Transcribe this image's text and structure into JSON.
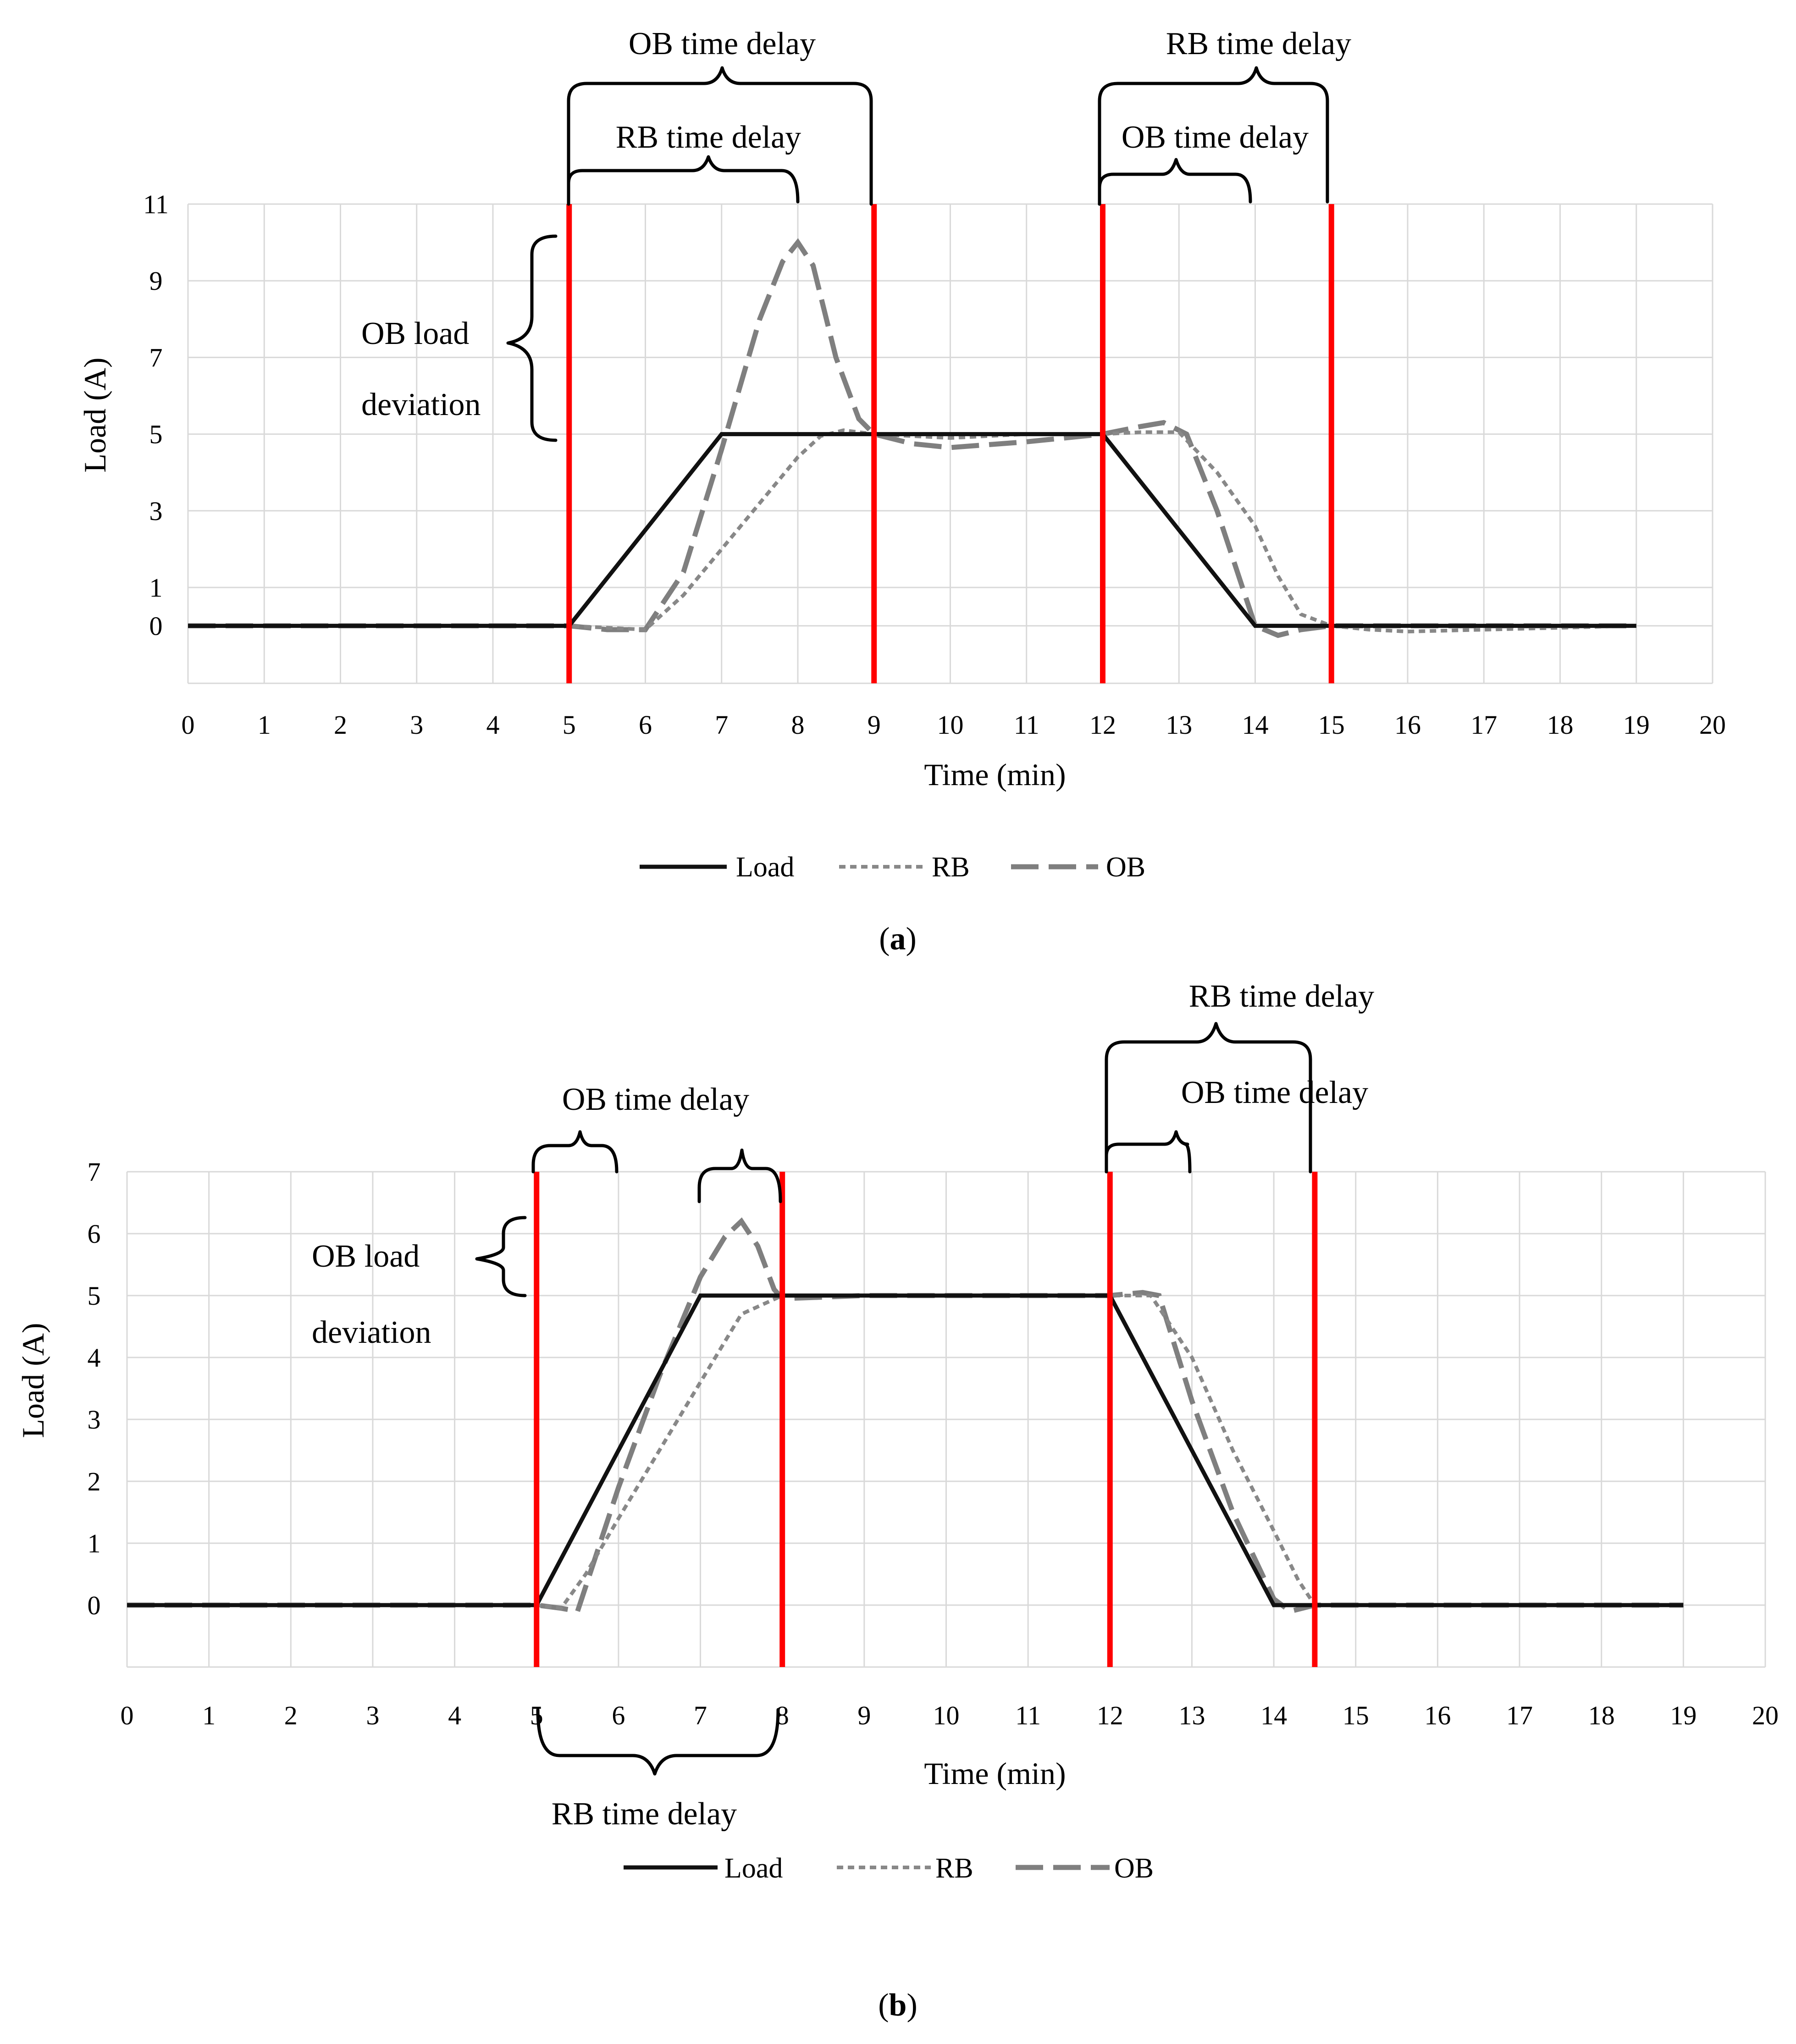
{
  "chart_data": [
    {
      "id": "a",
      "type": "line",
      "caption": "a",
      "xlabel": "Time (min)",
      "ylabel": "Load (A)",
      "xlim": [
        0,
        20
      ],
      "ylim": [
        -1.5,
        11
      ],
      "x_ticks": [
        0,
        1,
        2,
        3,
        4,
        5,
        6,
        7,
        8,
        9,
        10,
        11,
        12,
        13,
        14,
        15,
        16,
        17,
        18,
        19,
        20
      ],
      "y_ticks": [
        0,
        1,
        3,
        5,
        7,
        9,
        11
      ],
      "x_grid": [
        0,
        1,
        2,
        3,
        4,
        5,
        6,
        7,
        8,
        9,
        10,
        11,
        12,
        13,
        14,
        15,
        16,
        17,
        18,
        19,
        20
      ],
      "y_grid": [
        0,
        1,
        3,
        5,
        7,
        9,
        11
      ],
      "legend": [
        "Load",
        "RB",
        "OB"
      ],
      "series": [
        {
          "name": "Load",
          "x": [
            0,
            5,
            7,
            12,
            14,
            19
          ],
          "y": [
            0,
            0,
            5,
            5,
            0,
            0
          ]
        },
        {
          "name": "RB",
          "x": [
            0,
            5,
            5.5,
            6,
            6.5,
            7,
            7.5,
            8,
            8.3,
            8.6,
            9,
            9.5,
            10,
            11,
            12,
            12.5,
            13,
            13.5,
            14,
            14.3,
            14.6,
            15,
            15.5,
            16,
            17,
            18,
            19
          ],
          "y": [
            0,
            0,
            -0.05,
            -0.1,
            0.8,
            2,
            3.2,
            4.4,
            4.95,
            5.1,
            5,
            4.95,
            4.9,
            5,
            5,
            5.05,
            5.05,
            4,
            2.6,
            1.3,
            0.3,
            0,
            -0.1,
            -0.15,
            -0.1,
            -0.05,
            0
          ]
        },
        {
          "name": "OB",
          "x": [
            0,
            5,
            5.5,
            6,
            6.5,
            7,
            7.5,
            7.8,
            8,
            8.2,
            8.5,
            8.8,
            9,
            9.5,
            10,
            11,
            12,
            12.5,
            12.8,
            13.1,
            13.5,
            14,
            14.3,
            14.6,
            15,
            16,
            17,
            18,
            19
          ],
          "y": [
            0,
            0,
            -0.1,
            -0.1,
            1.4,
            4.6,
            8,
            9.5,
            10,
            9.4,
            7,
            5.4,
            5,
            4.75,
            4.65,
            4.8,
            5,
            5.2,
            5.3,
            5,
            3,
            0,
            -0.25,
            -0.1,
            0,
            0,
            0,
            0,
            0
          ]
        }
      ],
      "red_lines": [
        5,
        9,
        12,
        15
      ],
      "annotations": {
        "top_left_outer": "OB time delay",
        "top_left_inner": "RB time delay",
        "top_right_outer": "RB time delay",
        "top_right_inner": "OB time delay",
        "load_dev_line1": "OB load",
        "load_dev_line2": "deviation"
      }
    },
    {
      "id": "b",
      "type": "line",
      "caption": "b",
      "xlabel": "Time (min)",
      "ylabel": "Load (A)",
      "xlim": [
        0,
        20
      ],
      "ylim": [
        -1,
        7
      ],
      "x_ticks": [
        0,
        1,
        2,
        3,
        4,
        5,
        6,
        7,
        8,
        9,
        10,
        11,
        12,
        13,
        14,
        15,
        16,
        17,
        18,
        19,
        20
      ],
      "y_ticks": [
        0,
        1,
        2,
        3,
        4,
        5,
        6,
        7
      ],
      "x_grid": [
        0,
        1,
        2,
        3,
        4,
        5,
        6,
        7,
        8,
        9,
        10,
        11,
        12,
        13,
        14,
        15,
        16,
        17,
        18,
        19,
        20
      ],
      "y_grid": [
        0,
        1,
        2,
        3,
        4,
        5,
        6,
        7
      ],
      "legend": [
        "Load",
        "RB",
        "OB"
      ],
      "series": [
        {
          "name": "Load",
          "x": [
            0,
            5,
            7,
            12,
            14,
            19
          ],
          "y": [
            0,
            0,
            5,
            5,
            0,
            0
          ]
        },
        {
          "name": "RB",
          "x": [
            0,
            5,
            5.3,
            5.6,
            6,
            6.5,
            7,
            7.5,
            8,
            9,
            12,
            12.5,
            13,
            13.5,
            14,
            14.3,
            14.5,
            15,
            19
          ],
          "y": [
            0,
            0,
            -0.05,
            0.5,
            1.4,
            2.5,
            3.6,
            4.7,
            5,
            5,
            5,
            5,
            4,
            2.5,
            1.2,
            0.4,
            0,
            0,
            0
          ]
        },
        {
          "name": "OB",
          "x": [
            0,
            5,
            5.3,
            5.5,
            6,
            6.5,
            7,
            7.3,
            7.5,
            7.7,
            7.9,
            8,
            9,
            12,
            12.4,
            12.6,
            13,
            13.5,
            14,
            14.2,
            14.5,
            15,
            19
          ],
          "y": [
            0,
            0,
            -0.05,
            -0.1,
            1.9,
            3.7,
            5.3,
            5.95,
            6.2,
            5.8,
            5.1,
            4.95,
            5,
            5,
            5.05,
            5,
            3.3,
            1.5,
            0.1,
            -0.1,
            0,
            0,
            0
          ]
        }
      ],
      "red_lines": [
        5,
        8,
        12,
        14.5
      ],
      "annotations": {
        "top_left": "OB time delay",
        "bottom_left": "RB time delay",
        "top_right_outer": "RB time delay",
        "top_right_inner": "OB time delay",
        "load_dev_line1": "OB load",
        "load_dev_line2": "deviation"
      }
    }
  ]
}
